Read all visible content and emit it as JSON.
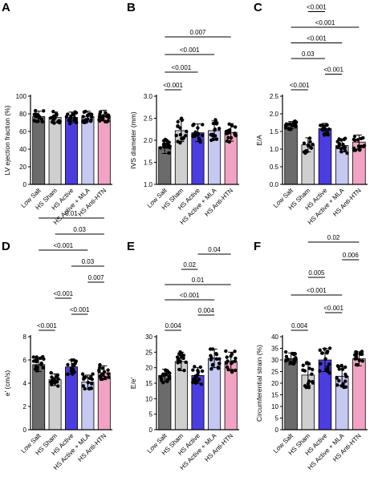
{
  "colors": {
    "Low Salt": "#6b6b6b",
    "HS Sham": "#cfcfcf",
    "HS Active": "#4b3de0",
    "HS Active + MLA": "#c6c8f2",
    "HS Anti-HTN": "#f2a3c4"
  },
  "chart_data": [
    {
      "letter": "A",
      "type": "bar",
      "ylabel": "LV ejection fraction (%)",
      "ylim": [
        0,
        100
      ],
      "yticks": [
        "0",
        "20",
        "40",
        "60",
        "80",
        "100"
      ],
      "categories": [
        "Low Salt",
        "HS Sham",
        "HS Active",
        "HS Active + MLA",
        "HS Anti-HTN"
      ],
      "values": [
        77,
        76,
        76,
        77,
        78
      ],
      "errors": [
        6,
        6,
        6,
        6,
        6
      ],
      "comparisons": []
    },
    {
      "letter": "B",
      "type": "bar",
      "ylabel": "IVS diameter (mm)",
      "ylim": [
        1.0,
        3.0
      ],
      "yticks": [
        "1.0",
        "1.5",
        "2.0",
        "2.5",
        "3.0"
      ],
      "categories": [
        "Low Salt",
        "HS Sham",
        "HS Active",
        "HS Active + MLA",
        "HS Anti-HTN"
      ],
      "values": [
        1.85,
        2.22,
        2.17,
        2.22,
        2.18
      ],
      "errors": [
        0.15,
        0.25,
        0.2,
        0.22,
        0.2
      ],
      "comparisons": [
        {
          "from": 0,
          "to": 1,
          "label": "<0.001"
        },
        {
          "from": 0,
          "to": 2,
          "label": "<0.001"
        },
        {
          "from": 0,
          "to": 3,
          "label": "<0.001"
        },
        {
          "from": 0,
          "to": 4,
          "label": "0.007"
        }
      ]
    },
    {
      "letter": "C",
      "type": "bar",
      "ylabel": "E/A",
      "ylim": [
        0,
        2.5
      ],
      "yticks": [
        "0.0",
        "0.5",
        "1.0",
        "1.5",
        "2.0",
        "2.5"
      ],
      "categories": [
        "Low Salt",
        "HS Sham",
        "HS Active",
        "HS Active + MLA",
        "HS Anti-HTN"
      ],
      "values": [
        1.68,
        1.12,
        1.58,
        1.1,
        1.2
      ],
      "errors": [
        0.1,
        0.2,
        0.15,
        0.18,
        0.2
      ],
      "comparisons": [
        {
          "from": 0,
          "to": 1,
          "label": "<0.001"
        },
        {
          "from": 2,
          "to": 3,
          "label": "<0.001"
        },
        {
          "from": 0,
          "to": 2,
          "label": "0.03"
        },
        {
          "from": 0,
          "to": 3,
          "label": "<0.001"
        },
        {
          "from": 0,
          "to": 4,
          "label": "<0.001"
        },
        {
          "from": 1,
          "to": 2,
          "label": "<0.001"
        },
        {
          "from": 2,
          "to": 4,
          "label": "<0.001"
        }
      ]
    },
    {
      "letter": "D",
      "type": "bar",
      "ylabel": "e' (cm/s)",
      "ylim": [
        0,
        8
      ],
      "yticks": [
        "0",
        "2",
        "4",
        "6",
        "8"
      ],
      "categories": [
        "Low Salt",
        "HS Sham",
        "HS Active",
        "HS Active + MLA",
        "HS Anti-HTN"
      ],
      "values": [
        5.6,
        4.3,
        5.4,
        4.1,
        4.9
      ],
      "errors": [
        0.6,
        0.5,
        0.6,
        0.6,
        0.6
      ],
      "comparisons": [
        {
          "from": 0,
          "to": 1,
          "label": "<0.001"
        },
        {
          "from": 2,
          "to": 3,
          "label": "<0.001"
        },
        {
          "from": 1,
          "to": 2,
          "label": "<0.001"
        },
        {
          "from": 3,
          "to": 4,
          "label": "0.007"
        },
        {
          "from": 2,
          "to": 4,
          "label": "0.03"
        },
        {
          "from": 0,
          "to": 3,
          "label": "<0.001"
        },
        {
          "from": 1,
          "to": 4,
          "label": "0.03"
        },
        {
          "from": 0,
          "to": 4,
          "label": "0.01"
        }
      ]
    },
    {
      "letter": "E",
      "type": "bar",
      "ylabel": "E/e'",
      "ylim": [
        0,
        30
      ],
      "yticks": [
        "0",
        "5",
        "10",
        "15",
        "20",
        "25",
        "30"
      ],
      "categories": [
        "Low Salt",
        "HS Sham",
        "HS Active",
        "HS Active + MLA",
        "HS Anti-HTN"
      ],
      "values": [
        17.5,
        22,
        17.5,
        23,
        22
      ],
      "errors": [
        2,
        3,
        2.5,
        3,
        3
      ],
      "comparisons": [
        {
          "from": 0,
          "to": 1,
          "label": "0.004"
        },
        {
          "from": 2,
          "to": 3,
          "label": "0.004"
        },
        {
          "from": 0,
          "to": 3,
          "label": "<0.001"
        },
        {
          "from": 0,
          "to": 4,
          "label": "0.01"
        },
        {
          "from": 1,
          "to": 2,
          "label": "0.02"
        },
        {
          "from": 2,
          "to": 4,
          "label": "0.04"
        }
      ]
    },
    {
      "letter": "F",
      "type": "bar",
      "ylabel": "Circumferential strain (%)",
      "ylim": [
        0,
        40
      ],
      "yticks": [
        "0",
        "5",
        "10",
        "15",
        "20",
        "25",
        "30",
        "35",
        "40"
      ],
      "categories": [
        "Low Salt",
        "HS Sham",
        "HS Active",
        "HS Active + MLA",
        "HS Anti-HTN"
      ],
      "values": [
        30.5,
        23.5,
        30,
        23,
        30.5
      ],
      "errors": [
        2.5,
        4.5,
        5,
        4,
        3
      ],
      "comparisons": [
        {
          "from": 0,
          "to": 1,
          "label": "0.004"
        },
        {
          "from": 2,
          "to": 3,
          "label": "<0.001"
        },
        {
          "from": 0,
          "to": 3,
          "label": "<0.001"
        },
        {
          "from": 1,
          "to": 2,
          "label": "0.005"
        },
        {
          "from": 3,
          "to": 4,
          "label": "0.006"
        },
        {
          "from": 1,
          "to": 4,
          "label": "0.02"
        }
      ]
    }
  ]
}
